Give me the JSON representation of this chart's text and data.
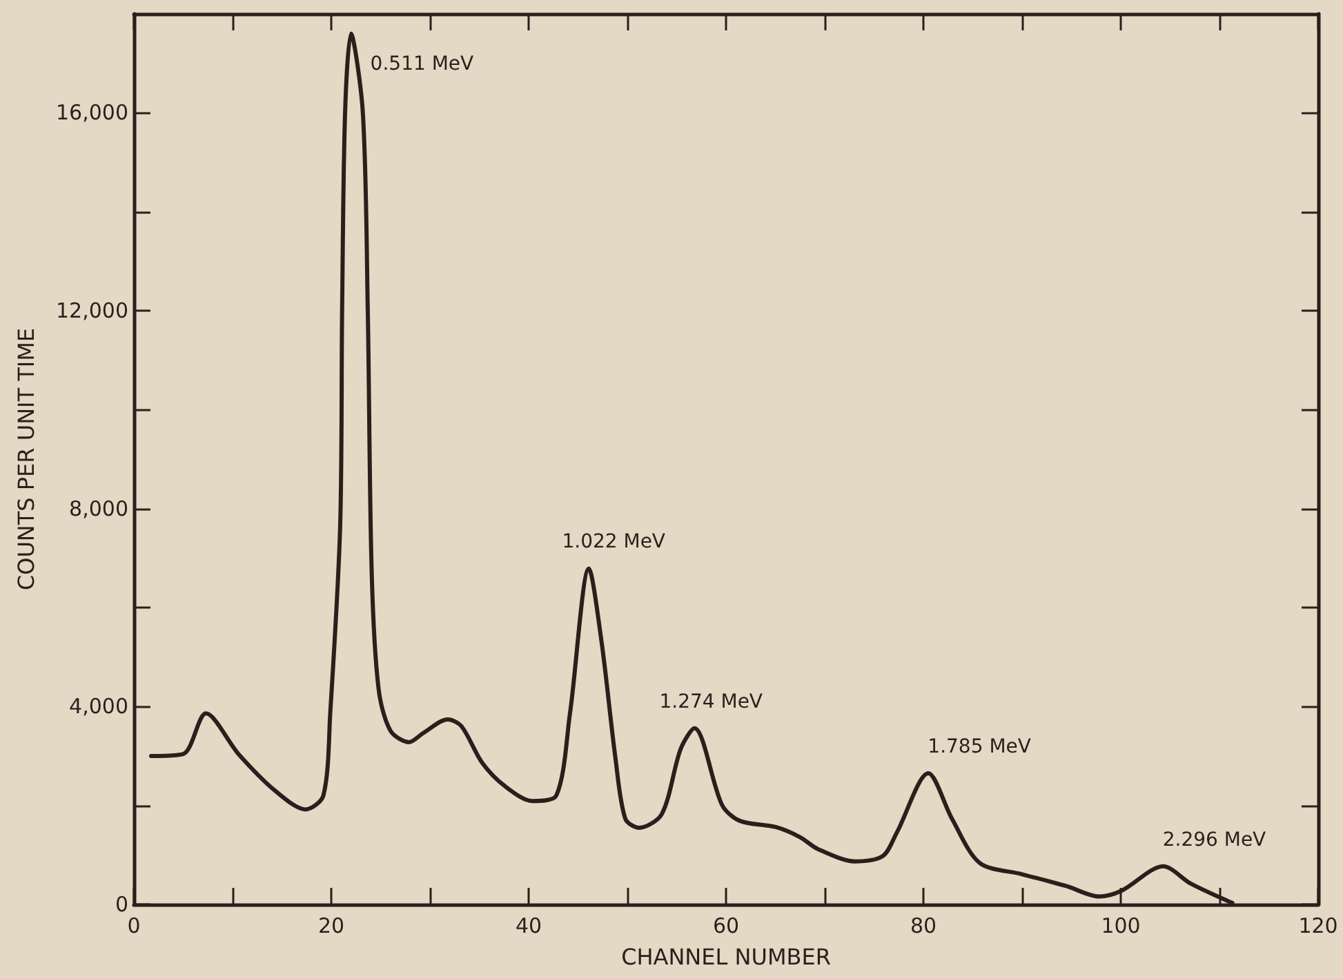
{
  "chart_data": {
    "type": "line",
    "xlabel": "CHANNEL NUMBER",
    "ylabel": "COUNTS PER UNIT TIME",
    "xlim": [
      0,
      120
    ],
    "ylim": [
      0,
      18000
    ],
    "xticks": [
      0,
      {
        "value": 10,
        "label": null
      },
      20,
      {
        "value": 30,
        "label": null
      },
      40,
      {
        "value": 50,
        "label": null
      },
      60,
      {
        "value": 70,
        "label": null
      },
      80,
      {
        "value": 90,
        "label": null
      },
      100,
      {
        "value": 110,
        "label": null
      },
      120
    ],
    "yticks": [
      {
        "value": 0,
        "label": "0"
      },
      {
        "value": 2000,
        "label": null
      },
      {
        "value": 4000,
        "label": "4,000"
      },
      {
        "value": 6000,
        "label": null
      },
      {
        "value": 8000,
        "label": "8,000"
      },
      {
        "value": 10000,
        "label": null
      },
      {
        "value": 12000,
        "label": "12,000"
      },
      {
        "value": 14000,
        "label": null
      },
      {
        "value": 16000,
        "label": "16,000"
      }
    ],
    "grid": false,
    "marker": "none",
    "line_style": "solid",
    "series": [
      {
        "color": "#2a1f1c",
        "x": [
          1.75,
          5.0,
          7.3,
          10.6,
          14.3,
          17.4,
          19.2,
          19.9,
          20.9,
          21.1,
          21.4,
          22.0,
          23.2,
          23.7,
          24.1,
          24.8,
          26.0,
          27.9,
          29.3,
          31.8,
          33.2,
          35.3,
          37.6,
          40.4,
          42.8,
          44.2,
          46.1,
          47.4,
          48.8,
          49.8,
          51.2,
          53.5,
          55.4,
          56.8,
          59.6,
          61.4,
          65.1,
          67.5,
          69.3,
          73.1,
          75.9,
          77.3,
          80.5,
          82.9,
          85.7,
          90.0,
          94.5,
          97.8,
          100.1,
          104.3,
          107.1,
          111.3
        ],
        "values": [
          3000,
          3040,
          3860,
          3040,
          2300,
          1920,
          2200,
          3880,
          7630,
          12000,
          16000,
          17600,
          16000,
          12000,
          6690,
          4350,
          3510,
          3280,
          3460,
          3740,
          3600,
          2860,
          2390,
          2090,
          2200,
          3880,
          6790,
          5290,
          2950,
          1730,
          1550,
          1830,
          3140,
          3560,
          2010,
          1690,
          1560,
          1360,
          1120,
          870,
          980,
          1450,
          2650,
          1730,
          840,
          610,
          370,
          160,
          280,
          770,
          420,
          30
        ]
      }
    ],
    "annotations": [
      {
        "text": "0.511 MeV",
        "x": 22.0,
        "y": 17600
      },
      {
        "text": "1.022 MeV",
        "x": 46.1,
        "y": 6790
      },
      {
        "text": "1.274 MeV",
        "x": 56.8,
        "y": 3560
      },
      {
        "text": "1.785 MeV",
        "x": 80.5,
        "y": 2650
      },
      {
        "text": "2.296 MeV",
        "x": 104.3,
        "y": 770
      }
    ]
  }
}
